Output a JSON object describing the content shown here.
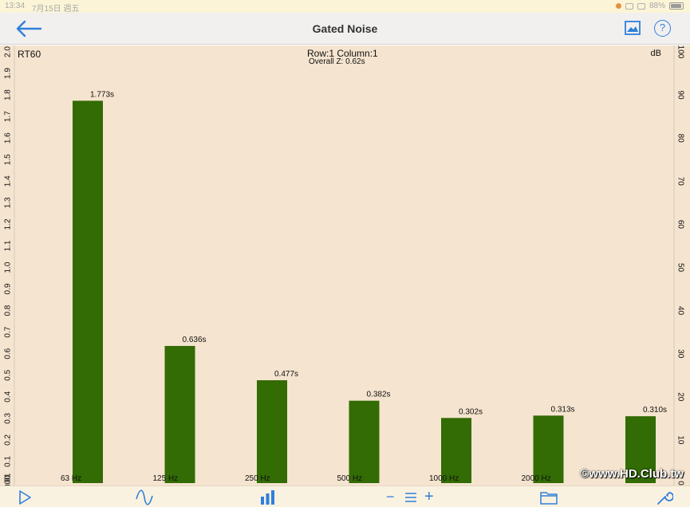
{
  "status_bar": {
    "time": "13:34",
    "date": "7月15日 週五",
    "battery": "88%"
  },
  "header": {
    "title": "Gated Noise",
    "back_icon": "arrow-left-icon",
    "image_icon": "image-icon",
    "help_label": "?"
  },
  "chart_header": {
    "left_axis_name": "RT60",
    "right_axis_name": "dB",
    "position": "Row:1 Column:1",
    "overall": "Overall Z: 0.62s"
  },
  "chart_data": {
    "type": "bar",
    "categories": [
      "63 Hz",
      "125 Hz",
      "250 Hz",
      "500 Hz",
      "1000 Hz",
      "2000 Hz",
      "4000 Hz"
    ],
    "category_labels_visible": [
      "63 Hz",
      "125 Hz",
      "250 Hz",
      "500 Hz",
      "1000 Hz",
      "2000 Hz",
      ""
    ],
    "values": [
      1.773,
      0.636,
      0.477,
      0.382,
      0.302,
      0.313,
      0.31
    ],
    "value_labels": [
      "1.773s",
      "0.636s",
      "0.477s",
      "0.382s",
      "0.302s",
      "0.313s",
      "0.310s"
    ],
    "ylabel": "RT60",
    "ylim": [
      0,
      2.0
    ],
    "left_ticks": [
      "0.00",
      "0.01",
      "0.1",
      "0.2",
      "0.3",
      "0.4",
      "0.5",
      "0.6",
      "0.7",
      "0.8",
      "0.9",
      "1.0",
      "1.1",
      "1.2",
      "1.3",
      "1.4",
      "1.5",
      "1.6",
      "1.7",
      "1.8",
      "1.9",
      "2.0"
    ],
    "left_tick_values": [
      0.0,
      0.01,
      0.1,
      0.2,
      0.3,
      0.4,
      0.5,
      0.6,
      0.7,
      0.8,
      0.9,
      1.0,
      1.1,
      1.2,
      1.3,
      1.4,
      1.5,
      1.6,
      1.7,
      1.8,
      1.9,
      2.0
    ],
    "y2label": "dB",
    "y2lim": [
      0,
      100
    ],
    "right_ticks": [
      "0",
      "10",
      "20",
      "30",
      "40",
      "50",
      "60",
      "70",
      "80",
      "90",
      "100"
    ],
    "right_tick_values": [
      0,
      10,
      20,
      30,
      40,
      50,
      60,
      70,
      80,
      90,
      100
    ],
    "bar_color": "#336b04",
    "background_color": "#f5e4cf",
    "grid": false
  },
  "toolbar": {
    "items": [
      {
        "name": "play-icon"
      },
      {
        "name": "waveform-icon"
      },
      {
        "name": "bar-chart-icon",
        "active": true
      },
      {
        "name": "zoom-out-button",
        "label": "−"
      },
      {
        "name": "list-icon"
      },
      {
        "name": "zoom-in-button",
        "label": "+"
      },
      {
        "name": "folder-icon"
      },
      {
        "name": "wrench-icon"
      }
    ],
    "active_color": "#2f7fdc"
  },
  "watermark": "©www.HD.Club.tw"
}
